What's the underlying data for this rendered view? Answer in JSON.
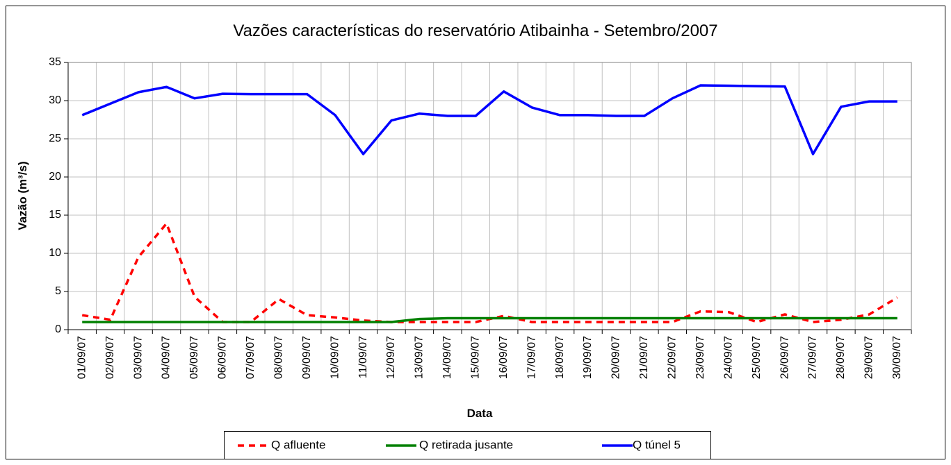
{
  "chart_data": {
    "type": "line",
    "title": "Vazões características do reservatório Atibainha - Setembro/2007",
    "x_label": "Data",
    "y_label": "Vazão (m³/s)",
    "categories": [
      "01/09/07",
      "02/09/07",
      "03/09/07",
      "04/09/07",
      "05/09/07",
      "06/09/07",
      "07/09/07",
      "08/09/07",
      "09/09/07",
      "10/09/07",
      "11/09/07",
      "12/09/07",
      "13/09/07",
      "14/09/07",
      "15/09/07",
      "16/09/07",
      "17/09/07",
      "18/09/07",
      "19/09/07",
      "20/09/07",
      "21/09/07",
      "22/09/07",
      "23/09/07",
      "24/09/07",
      "25/09/07",
      "26/09/07",
      "27/09/07",
      "28/09/07",
      "29/09/07",
      "30/09/07"
    ],
    "series": [
      {
        "name": "Q afluente",
        "color": "#ff0000",
        "dash": true,
        "values": [
          1.9,
          1.3,
          9.5,
          13.9,
          4.3,
          1.0,
          1.0,
          4.0,
          1.9,
          1.6,
          1.2,
          1.0,
          1.0,
          1.0,
          1.0,
          1.8,
          1.0,
          1.0,
          1.0,
          1.0,
          1.0,
          1.0,
          2.4,
          2.3,
          1.0,
          2.0,
          1.0,
          1.3,
          2.0,
          4.2
        ]
      },
      {
        "name": "Q retirada jusante",
        "color": "#008000",
        "dash": false,
        "values": [
          1.0,
          1.0,
          1.0,
          1.0,
          1.0,
          1.0,
          1.0,
          1.0,
          1.0,
          1.0,
          1.0,
          1.0,
          1.4,
          1.5,
          1.5,
          1.5,
          1.5,
          1.5,
          1.5,
          1.5,
          1.5,
          1.5,
          1.5,
          1.5,
          1.5,
          1.5,
          1.5,
          1.5,
          1.5,
          1.5
        ]
      },
      {
        "name": "Q túnel 5",
        "color": "#0000ff",
        "dash": false,
        "values": [
          28.1,
          29.6,
          31.1,
          31.8,
          30.3,
          30.9,
          30.85,
          30.85,
          30.85,
          28.1,
          23.0,
          27.4,
          28.3,
          28.0,
          28.0,
          31.2,
          29.1,
          28.1,
          28.1,
          28.0,
          28.0,
          30.3,
          32.0,
          31.95,
          31.9,
          31.85,
          23.0,
          29.2,
          29.9,
          29.9
        ]
      }
    ],
    "ylim": [
      0,
      35
    ],
    "yticks": [
      0,
      5,
      10,
      15,
      20,
      25,
      30,
      35
    ],
    "grid": true
  }
}
